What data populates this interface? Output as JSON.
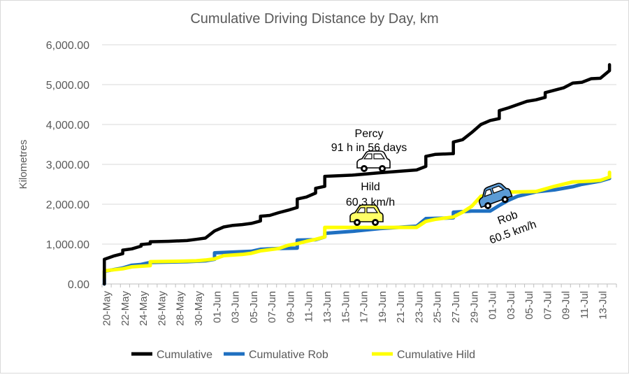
{
  "chart_data": {
    "type": "line",
    "title": "Cumulative Driving Distance by Day, km",
    "xlabel": "",
    "ylabel": "Kilometres",
    "ylim": [
      0,
      6000
    ],
    "y_ticks": [
      "0.00",
      "1,000.00",
      "2,000.00",
      "3,000.00",
      "4,000.00",
      "5,000.00",
      "6,000.00"
    ],
    "y_tick_values": [
      0,
      1000,
      2000,
      3000,
      4000,
      5000,
      6000
    ],
    "x_range": [
      "2024-05-20",
      "2024-07-15"
    ],
    "x_tick_labels": [
      "20-May",
      "22-May",
      "24-May",
      "26-May",
      "28-May",
      "30-May",
      "01-Jun",
      "03-Jun",
      "05-Jun",
      "07-Jun",
      "09-Jun",
      "11-Jun",
      "13-Jun",
      "15-Jun",
      "17-Jun",
      "19-Jun",
      "21-Jun",
      "23-Jun",
      "25-Jun",
      "27-Jun",
      "29-Jun",
      "01-Jul",
      "03-Jul",
      "05-Jul",
      "07-Jul",
      "09-Jul",
      "11-Jul",
      "13-Jul"
    ],
    "grid": "horizontal",
    "legend_position": "bottom",
    "series": [
      {
        "name": "Cumulative",
        "color": "#000000",
        "points": [
          [
            "2024-05-20",
            0
          ],
          [
            "2024-05-20",
            620
          ],
          [
            "2024-05-21",
            700
          ],
          [
            "2024-05-22",
            760
          ],
          [
            "2024-05-22",
            850
          ],
          [
            "2024-05-23",
            880
          ],
          [
            "2024-05-24",
            950
          ],
          [
            "2024-05-24",
            990
          ],
          [
            "2024-05-25",
            1010
          ],
          [
            "2024-05-25",
            1060
          ],
          [
            "2024-05-27",
            1070
          ],
          [
            "2024-05-29",
            1090
          ],
          [
            "2024-05-30",
            1120
          ],
          [
            "2024-05-31",
            1150
          ],
          [
            "2024-06-01",
            1330
          ],
          [
            "2024-06-02",
            1430
          ],
          [
            "2024-06-03",
            1470
          ],
          [
            "2024-06-04",
            1490
          ],
          [
            "2024-06-05",
            1520
          ],
          [
            "2024-06-06",
            1580
          ],
          [
            "2024-06-06",
            1700
          ],
          [
            "2024-06-07",
            1720
          ],
          [
            "2024-06-08",
            1790
          ],
          [
            "2024-06-09",
            1850
          ],
          [
            "2024-06-10",
            1920
          ],
          [
            "2024-06-10",
            2130
          ],
          [
            "2024-06-11",
            2180
          ],
          [
            "2024-06-12",
            2280
          ],
          [
            "2024-06-12",
            2400
          ],
          [
            "2024-06-13",
            2450
          ],
          [
            "2024-06-13",
            2700
          ],
          [
            "2024-06-16",
            2730
          ],
          [
            "2024-06-19",
            2790
          ],
          [
            "2024-06-23",
            2860
          ],
          [
            "2024-06-24",
            2950
          ],
          [
            "2024-06-24",
            3200
          ],
          [
            "2024-06-25",
            3250
          ],
          [
            "2024-06-27",
            3270
          ],
          [
            "2024-06-27",
            3560
          ],
          [
            "2024-06-28",
            3620
          ],
          [
            "2024-06-29",
            3800
          ],
          [
            "2024-06-30",
            4000
          ],
          [
            "2024-07-01",
            4100
          ],
          [
            "2024-07-02",
            4150
          ],
          [
            "2024-07-02",
            4350
          ],
          [
            "2024-07-03",
            4420
          ],
          [
            "2024-07-05",
            4580
          ],
          [
            "2024-07-06",
            4620
          ],
          [
            "2024-07-07",
            4680
          ],
          [
            "2024-07-07",
            4800
          ],
          [
            "2024-07-09",
            4920
          ],
          [
            "2024-07-10",
            5040
          ],
          [
            "2024-07-11",
            5060
          ],
          [
            "2024-07-12",
            5150
          ],
          [
            "2024-07-13",
            5160
          ],
          [
            "2024-07-14",
            5350
          ],
          [
            "2024-07-14",
            5500
          ]
        ]
      },
      {
        "name": "Cumulative Rob",
        "color": "#1f70c1",
        "points": [
          [
            "2024-05-20",
            0
          ],
          [
            "2024-05-20",
            320
          ],
          [
            "2024-05-22",
            400
          ],
          [
            "2024-05-23",
            470
          ],
          [
            "2024-05-24",
            490
          ],
          [
            "2024-05-25",
            540
          ],
          [
            "2024-05-29",
            560
          ],
          [
            "2024-05-31",
            580
          ],
          [
            "2024-06-01",
            620
          ],
          [
            "2024-06-01",
            780
          ],
          [
            "2024-06-03",
            800
          ],
          [
            "2024-06-05",
            820
          ],
          [
            "2024-06-06",
            870
          ],
          [
            "2024-06-08",
            890
          ],
          [
            "2024-06-10",
            900
          ],
          [
            "2024-06-10",
            1100
          ],
          [
            "2024-06-12",
            1110
          ],
          [
            "2024-06-13",
            1180
          ],
          [
            "2024-06-13",
            1270
          ],
          [
            "2024-06-16",
            1320
          ],
          [
            "2024-06-19",
            1390
          ],
          [
            "2024-06-23",
            1450
          ],
          [
            "2024-06-24",
            1640
          ],
          [
            "2024-06-26",
            1650
          ],
          [
            "2024-06-27",
            1660
          ],
          [
            "2024-06-27",
            1800
          ],
          [
            "2024-06-29",
            1830
          ],
          [
            "2024-07-01",
            1830
          ],
          [
            "2024-07-02",
            1970
          ],
          [
            "2024-07-03",
            2100
          ],
          [
            "2024-07-04",
            2200
          ],
          [
            "2024-07-06",
            2310
          ],
          [
            "2024-07-08",
            2360
          ],
          [
            "2024-07-10",
            2440
          ],
          [
            "2024-07-11",
            2500
          ],
          [
            "2024-07-13",
            2580
          ],
          [
            "2024-07-14",
            2650
          ]
        ]
      },
      {
        "name": "Cumulative Hild",
        "color": "#ffff00",
        "points": [
          [
            "2024-05-20",
            150
          ],
          [
            "2024-05-20",
            330
          ],
          [
            "2024-05-22",
            380
          ],
          [
            "2024-05-23",
            430
          ],
          [
            "2024-05-25",
            460
          ],
          [
            "2024-05-25",
            560
          ],
          [
            "2024-05-28",
            570
          ],
          [
            "2024-05-30",
            580
          ],
          [
            "2024-05-31",
            600
          ],
          [
            "2024-06-01",
            630
          ],
          [
            "2024-06-02",
            710
          ],
          [
            "2024-06-04",
            740
          ],
          [
            "2024-06-05",
            770
          ],
          [
            "2024-06-06",
            830
          ],
          [
            "2024-06-08",
            890
          ],
          [
            "2024-06-09",
            970
          ],
          [
            "2024-06-10",
            1010
          ],
          [
            "2024-06-11",
            1070
          ],
          [
            "2024-06-12",
            1120
          ],
          [
            "2024-06-13",
            1180
          ],
          [
            "2024-06-13",
            1420
          ],
          [
            "2024-06-16",
            1420
          ],
          [
            "2024-06-19",
            1420
          ],
          [
            "2024-06-23",
            1420
          ],
          [
            "2024-06-24",
            1570
          ],
          [
            "2024-06-25",
            1620
          ],
          [
            "2024-06-27",
            1680
          ],
          [
            "2024-06-28",
            1800
          ],
          [
            "2024-06-29",
            1950
          ],
          [
            "2024-06-30",
            2200
          ],
          [
            "2024-07-01",
            2250
          ],
          [
            "2024-07-02",
            2300
          ],
          [
            "2024-07-06",
            2320
          ],
          [
            "2024-07-08",
            2450
          ],
          [
            "2024-07-10",
            2560
          ],
          [
            "2024-07-12",
            2580
          ],
          [
            "2024-07-13",
            2600
          ],
          [
            "2024-07-14",
            2680
          ],
          [
            "2024-07-14",
            2800
          ]
        ]
      }
    ],
    "annotations": [
      {
        "id": "percy",
        "lines": [
          "Percy",
          "91 h in 56 days"
        ],
        "car_color": "#ffffff",
        "rotation": 0
      },
      {
        "id": "hild",
        "lines": [
          "Hild",
          "60.3 km/h"
        ],
        "car_color": "#ffff66",
        "rotation": 0
      },
      {
        "id": "rob",
        "lines": [
          "Rob",
          "60.5 km/h"
        ],
        "car_color": "#5b9bd5",
        "rotation": -20
      }
    ]
  }
}
